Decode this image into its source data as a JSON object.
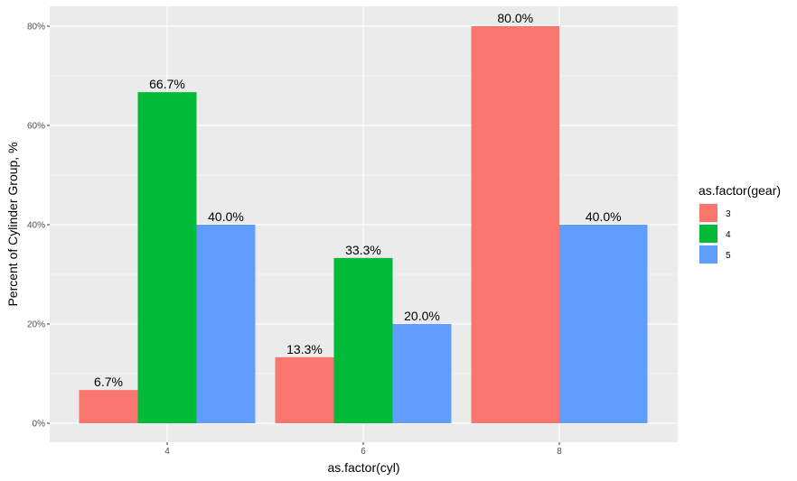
{
  "chart_data": {
    "type": "bar",
    "xlabel": "as.factor(cyl)",
    "ylabel": "Percent of Cylinder Group, %",
    "categories": [
      "4",
      "6",
      "8"
    ],
    "ylim": [
      0,
      80
    ],
    "yticks": [
      "0%",
      "20%",
      "40%",
      "60%",
      "80%"
    ],
    "grid": true,
    "legend": {
      "title": "as.factor(gear)",
      "placement": "right"
    },
    "series": [
      {
        "name": "3",
        "color": "#F8766D",
        "values": [
          6.7,
          13.3,
          80.0
        ],
        "labels": [
          "6.7%",
          "13.3%",
          "80.0%"
        ]
      },
      {
        "name": "4",
        "color": "#00BA38",
        "values": [
          66.7,
          33.3,
          null
        ],
        "labels": [
          "66.7%",
          "33.3%",
          null
        ]
      },
      {
        "name": "5",
        "color": "#619CFF",
        "values": [
          40.0,
          20.0,
          40.0
        ],
        "labels": [
          "40.0%",
          "20.0%",
          "40.0%"
        ]
      }
    ]
  }
}
